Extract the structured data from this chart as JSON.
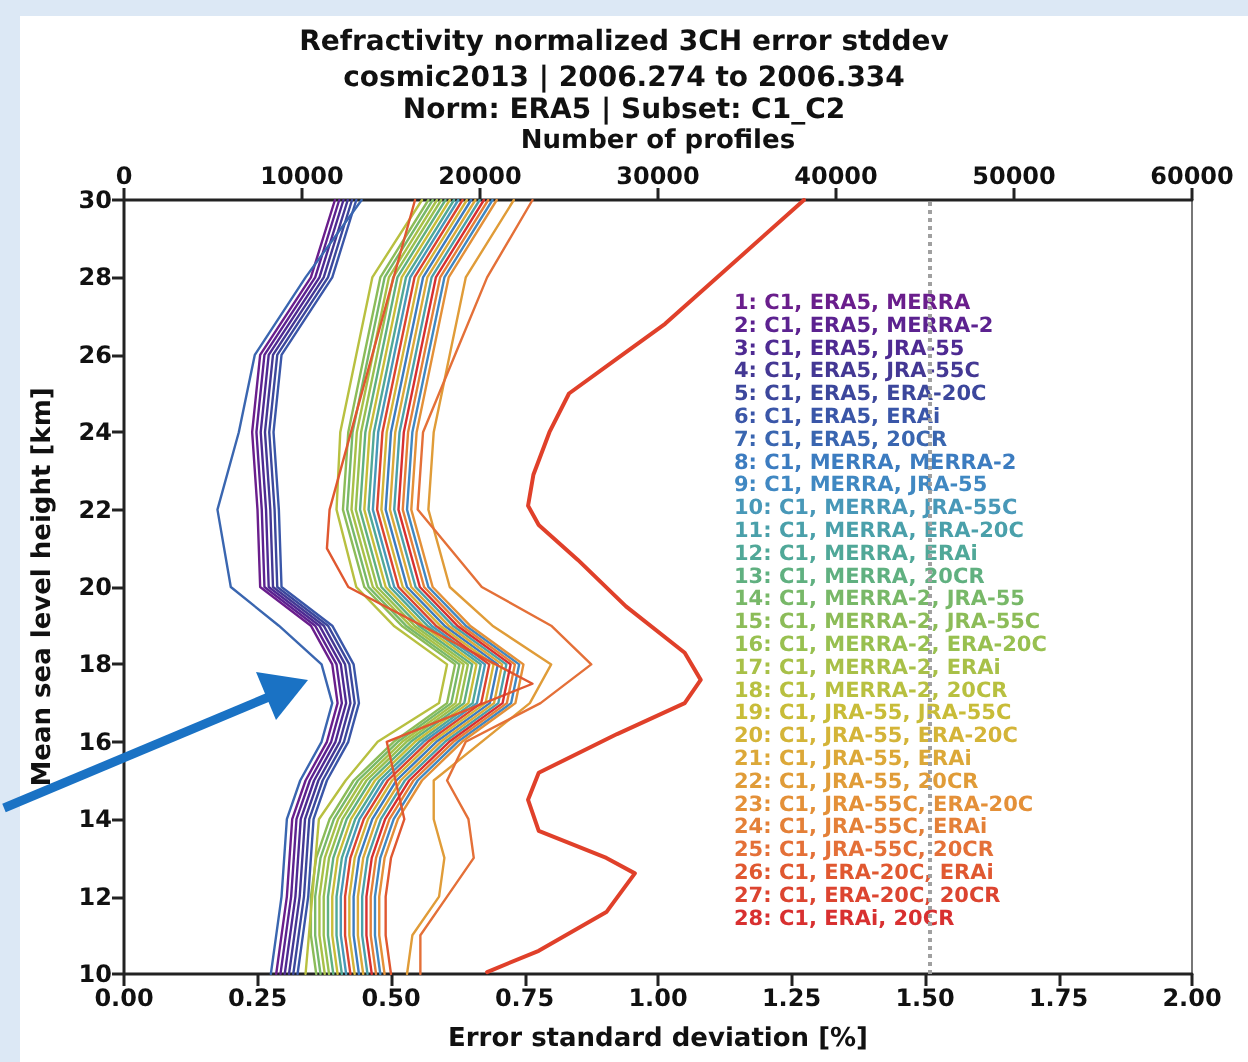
{
  "chart_data": {
    "type": "line",
    "title": "Refractivity normalized 3CH error stddev",
    "subtitle": "cosmic2013 | 2006.274 to 2006.334\nNorm: ERA5 | Subset: C1_C2",
    "xlabel": "Error standard deviation [%]",
    "ylabel": "Mean sea level height [km]",
    "x2label": "Number of profiles",
    "xlim": [
      0,
      2
    ],
    "xticks": [
      {
        "value": 0,
        "label": "0.00"
      },
      {
        "value": 0.25,
        "label": "0.25"
      },
      {
        "value": 0.5,
        "label": "0.50"
      },
      {
        "value": 0.75,
        "label": "0.75"
      },
      {
        "value": 1,
        "label": "1.00"
      },
      {
        "value": 1.25,
        "label": "1.25"
      },
      {
        "value": 1.5,
        "label": "1.50"
      },
      {
        "value": 1.75,
        "label": "1.75"
      },
      {
        "value": 2,
        "label": "2.00"
      }
    ],
    "x2lim": [
      0,
      60000
    ],
    "x2ticks": [
      0,
      10000,
      20000,
      30000,
      40000,
      50000,
      60000
    ],
    "ylim": [
      10,
      30
    ],
    "yticks": [
      10,
      12,
      14,
      16,
      18,
      20,
      22,
      24,
      26,
      28,
      30
    ],
    "grid": false,
    "legend": "right",
    "marker": "none",
    "line_style": "solid",
    "ref_lines": [
      {
        "axis": "x",
        "value": 1.51,
        "color": "#a0a0a0",
        "line_style": "dotted"
      }
    ],
    "series": [
      {
        "name": "1: C1, ERA5, MERRA",
        "color": "#6a1e8c",
        "x": [
          0.395,
          0.35,
          0.255,
          0.24,
          0.25,
          0.255,
          0.35,
          0.39,
          0.4,
          0.38,
          0.34,
          0.315,
          0.31,
          0.305,
          0.295,
          0.285
        ],
        "values": [
          30,
          28,
          26,
          24,
          22,
          20,
          19,
          18,
          17,
          16,
          15,
          14,
          13,
          12,
          11,
          10
        ]
      },
      {
        "name": "2: C1, ERA5, MERRA-2",
        "color": "#5c2290",
        "x": [
          0.403,
          0.358,
          0.263,
          0.248,
          0.258,
          0.263,
          0.358,
          0.398,
          0.408,
          0.388,
          0.348,
          0.323,
          0.318,
          0.313,
          0.303,
          0.293
        ],
        "values": [
          30,
          28,
          26,
          24,
          22,
          20,
          19,
          18,
          17,
          16,
          15,
          14,
          13,
          12,
          11,
          10
        ]
      },
      {
        "name": "3: C1, ERA5, JRA-55",
        "color": "#4e2a92",
        "x": [
          0.411,
          0.366,
          0.271,
          0.256,
          0.266,
          0.271,
          0.366,
          0.406,
          0.416,
          0.396,
          0.356,
          0.331,
          0.326,
          0.321,
          0.311,
          0.301
        ],
        "values": [
          30,
          28,
          26,
          24,
          22,
          20,
          19,
          18,
          17,
          16,
          15,
          14,
          13,
          12,
          11,
          10
        ]
      },
      {
        "name": "4: C1, ERA5, JRA-55C",
        "color": "#443894",
        "x": [
          0.419,
          0.374,
          0.279,
          0.264,
          0.274,
          0.279,
          0.374,
          0.414,
          0.424,
          0.404,
          0.364,
          0.339,
          0.334,
          0.329,
          0.319,
          0.309
        ],
        "values": [
          30,
          28,
          26,
          24,
          22,
          20,
          19,
          18,
          17,
          16,
          15,
          14,
          13,
          12,
          11,
          10
        ]
      },
      {
        "name": "5: C1, ERA5, ERA-20C",
        "color": "#3c479c",
        "x": [
          0.427,
          0.382,
          0.287,
          0.272,
          0.282,
          0.287,
          0.382,
          0.422,
          0.432,
          0.412,
          0.372,
          0.347,
          0.342,
          0.337,
          0.327,
          0.317
        ],
        "values": [
          30,
          28,
          26,
          24,
          22,
          20,
          19,
          18,
          17,
          16,
          15,
          14,
          13,
          12,
          11,
          10
        ]
      },
      {
        "name": "6: C1, ERA5, ERAi",
        "color": "#3a56a8",
        "x": [
          0.435,
          0.39,
          0.295,
          0.28,
          0.29,
          0.295,
          0.39,
          0.43,
          0.44,
          0.42,
          0.38,
          0.355,
          0.35,
          0.345,
          0.335,
          0.325
        ],
        "values": [
          30,
          28,
          26,
          24,
          22,
          20,
          19,
          18,
          17,
          16,
          15,
          14,
          13,
          12,
          11,
          10
        ]
      },
      {
        "name": "7: C1, ERA5, 20CR",
        "color": "#3a66b0",
        "x": [
          0.445,
          0.34,
          0.245,
          0.215,
          0.175,
          0.2,
          0.29,
          0.37,
          0.39,
          0.37,
          0.33,
          0.305,
          0.3,
          0.295,
          0.285,
          0.275
        ],
        "values": [
          30,
          28,
          26,
          24,
          22,
          20,
          19,
          18,
          17,
          16,
          15,
          14,
          13,
          12,
          11,
          10
        ]
      },
      {
        "name": "8: C1, MERRA, MERRA-2",
        "color": "#3c7cc0",
        "x": [
          0.65,
          0.56,
          0.53,
          0.5,
          0.49,
          0.53,
          0.6,
          0.7,
          0.685,
          0.585,
          0.51,
          0.465,
          0.44,
          0.43,
          0.43,
          0.44
        ],
        "values": [
          30,
          28,
          26,
          24,
          22,
          20,
          19,
          18,
          17,
          16,
          15,
          14,
          13,
          12,
          11,
          10
        ]
      },
      {
        "name": "9: C1, MERRA, JRA-55",
        "color": "#4088c2",
        "x": [
          0.69,
          0.6,
          0.57,
          0.54,
          0.53,
          0.57,
          0.64,
          0.74,
          0.725,
          0.625,
          0.55,
          0.505,
          0.48,
          0.47,
          0.47,
          0.48
        ],
        "values": [
          30,
          28,
          26,
          24,
          22,
          20,
          19,
          18,
          17,
          16,
          15,
          14,
          13,
          12,
          11,
          10
        ]
      },
      {
        "name": "10: C1, MERRA, JRA-55C",
        "color": "#4898b8",
        "x": [
          0.626,
          0.536,
          0.506,
          0.476,
          0.466,
          0.506,
          0.576,
          0.676,
          0.661,
          0.561,
          0.486,
          0.441,
          0.416,
          0.406,
          0.406,
          0.416
        ],
        "values": [
          30,
          28,
          26,
          24,
          22,
          20,
          19,
          18,
          17,
          16,
          15,
          14,
          13,
          12,
          11,
          10
        ]
      },
      {
        "name": "11: C1, MERRA, ERA-20C",
        "color": "#4aa0aa",
        "x": [
          0.666,
          0.576,
          0.546,
          0.516,
          0.506,
          0.546,
          0.616,
          0.716,
          0.701,
          0.601,
          0.526,
          0.481,
          0.456,
          0.446,
          0.446,
          0.456
        ],
        "values": [
          30,
          28,
          26,
          24,
          22,
          20,
          19,
          18,
          17,
          16,
          15,
          14,
          13,
          12,
          11,
          10
        ]
      },
      {
        "name": "12: C1, MERRA, ERAi",
        "color": "#50a898",
        "x": [
          0.618,
          0.528,
          0.498,
          0.468,
          0.458,
          0.498,
          0.568,
          0.668,
          0.653,
          0.553,
          0.478,
          0.433,
          0.408,
          0.398,
          0.398,
          0.408
        ],
        "values": [
          30,
          28,
          26,
          24,
          22,
          20,
          19,
          18,
          17,
          16,
          15,
          14,
          13,
          12,
          11,
          10
        ]
      },
      {
        "name": "13: C1, MERRA, 20CR",
        "color": "#60b080",
        "x": [
          0.602,
          0.512,
          0.482,
          0.452,
          0.442,
          0.482,
          0.552,
          0.652,
          0.637,
          0.537,
          0.462,
          0.417,
          0.392,
          0.382,
          0.382,
          0.392
        ],
        "values": [
          30,
          28,
          26,
          24,
          22,
          20,
          19,
          18,
          17,
          16,
          15,
          14,
          13,
          12,
          11,
          10
        ]
      },
      {
        "name": "14: C1, MERRA-2, JRA-55",
        "color": "#78b868",
        "x": [
          0.578,
          0.488,
          0.458,
          0.428,
          0.418,
          0.458,
          0.528,
          0.628,
          0.613,
          0.513,
          0.438,
          0.393,
          0.368,
          0.358,
          0.358,
          0.368
        ],
        "values": [
          30,
          28,
          26,
          24,
          22,
          20,
          19,
          18,
          17,
          16,
          15,
          14,
          13,
          12,
          11,
          10
        ]
      },
      {
        "name": "15: C1, MERRA-2, JRA-55C",
        "color": "#8cbc58",
        "x": [
          0.57,
          0.48,
          0.45,
          0.42,
          0.41,
          0.45,
          0.52,
          0.62,
          0.605,
          0.505,
          0.43,
          0.385,
          0.36,
          0.35,
          0.35,
          0.36
        ],
        "values": [
          30,
          28,
          26,
          24,
          22,
          20,
          19,
          18,
          17,
          16,
          15,
          14,
          13,
          12,
          11,
          10
        ]
      },
      {
        "name": "16: C1, MERRA-2, ERA-20C",
        "color": "#98c050",
        "x": [
          0.594,
          0.504,
          0.474,
          0.444,
          0.434,
          0.474,
          0.544,
          0.644,
          0.629,
          0.529,
          0.454,
          0.409,
          0.384,
          0.374,
          0.374,
          0.384
        ],
        "values": [
          30,
          28,
          26,
          24,
          22,
          20,
          19,
          18,
          17,
          16,
          15,
          14,
          13,
          12,
          11,
          10
        ]
      },
      {
        "name": "17: C1, MERRA-2, ERAi",
        "color": "#a8c048",
        "x": [
          0.586,
          0.496,
          0.466,
          0.436,
          0.426,
          0.466,
          0.536,
          0.636,
          0.621,
          0.521,
          0.446,
          0.401,
          0.376,
          0.366,
          0.366,
          0.376
        ],
        "values": [
          30,
          28,
          26,
          24,
          22,
          20,
          19,
          18,
          17,
          16,
          15,
          14,
          13,
          12,
          11,
          10
        ]
      },
      {
        "name": "18: C1, MERRA-2, 20CR",
        "color": "#b8c040",
        "x": [
          0.558,
          0.465,
          0.435,
          0.405,
          0.398,
          0.435,
          0.505,
          0.605,
          0.59,
          0.475,
          0.415,
          0.365,
          0.34
        ],
        "values": [
          30,
          28,
          26,
          24,
          22,
          20,
          19,
          18,
          17,
          16,
          15,
          14,
          10
        ]
      },
      {
        "name": "19: C1, JRA-55, JRA-55C",
        "color": "#c8bc38",
        "x": [
          0.61,
          0.52,
          0.49,
          0.46,
          0.45,
          0.49,
          0.56,
          0.66,
          0.645,
          0.545,
          0.47,
          0.425,
          0.4,
          0.39,
          0.39,
          0.4
        ],
        "values": [
          30,
          28,
          26,
          24,
          22,
          20,
          19,
          18,
          17,
          16,
          15,
          14,
          13,
          12,
          11,
          10
        ]
      },
      {
        "name": "20: C1, JRA-55, ERA-20C",
        "color": "#d4b438",
        "x": [
          0.642,
          0.552,
          0.522,
          0.492,
          0.482,
          0.522,
          0.592,
          0.692,
          0.677,
          0.577,
          0.502,
          0.457,
          0.432,
          0.422,
          0.422,
          0.432
        ],
        "values": [
          30,
          28,
          26,
          24,
          22,
          20,
          19,
          18,
          17,
          16,
          15,
          14,
          13,
          12,
          11,
          10
        ]
      },
      {
        "name": "21: C1, JRA-55, ERAi",
        "color": "#dca838",
        "x": [
          0.658,
          0.568,
          0.538,
          0.508,
          0.498,
          0.538,
          0.608,
          0.708,
          0.693,
          0.593,
          0.518,
          0.473,
          0.448,
          0.438,
          0.438,
          0.448
        ],
        "values": [
          30,
          28,
          26,
          24,
          22,
          20,
          19,
          18,
          17,
          16,
          15,
          14,
          13,
          12,
          11,
          10
        ]
      },
      {
        "name": "22: C1, JRA-55, 20CR",
        "color": "#e09c38",
        "x": [
          0.73,
          0.64,
          0.61,
          0.58,
          0.57,
          0.61,
          0.69,
          0.8,
          0.76,
          0.58,
          0.58,
          0.6,
          0.59,
          0.54,
          0.53
        ],
        "values": [
          30,
          28,
          26,
          24,
          22,
          20,
          19,
          18,
          17,
          15,
          14,
          13,
          12,
          11,
          10
        ]
      },
      {
        "name": "23: C1, JRA-55C, ERA-20C",
        "color": "#e49038",
        "x": [
          0.698,
          0.608,
          0.578,
          0.548,
          0.538,
          0.578,
          0.648,
          0.748,
          0.733,
          0.633,
          0.558,
          0.513,
          0.488,
          0.478,
          0.478,
          0.488
        ],
        "values": [
          30,
          28,
          26,
          24,
          22,
          20,
          19,
          18,
          17,
          16,
          15,
          14,
          13,
          12,
          11,
          10
        ]
      },
      {
        "name": "24: C1, JRA-55C, ERAi",
        "color": "#e48038",
        "x": [
          0.682,
          0.592,
          0.562,
          0.532,
          0.522,
          0.562,
          0.632,
          0.732,
          0.717,
          0.617,
          0.542,
          0.497,
          0.472,
          0.462,
          0.462,
          0.472
        ],
        "values": [
          30,
          28,
          26,
          24,
          22,
          20,
          19,
          18,
          17,
          16,
          15,
          14,
          13,
          12,
          11,
          10
        ]
      },
      {
        "name": "25: C1, JRA-55C, 20CR",
        "color": "#e47038",
        "x": [
          0.765,
          0.68,
          0.62,
          0.56,
          0.55,
          0.67,
          0.8,
          0.875,
          0.78,
          0.64,
          0.605,
          0.645,
          0.655,
          0.605,
          0.555,
          0.555
        ],
        "values": [
          30,
          28,
          26,
          24,
          22,
          20,
          19,
          18,
          17,
          16,
          15,
          14,
          13,
          12,
          11,
          10
        ]
      },
      {
        "name": "26: C1, ERA-20C, ERAi",
        "color": "#e05830",
        "x": [
          0.545,
          0.385,
          0.38,
          0.42,
          0.765,
          0.492,
          0.525,
          0.5,
          0.49,
          0.49,
          0.5
        ],
        "values": [
          30,
          22,
          21,
          20,
          17.5,
          16,
          14,
          13,
          12,
          11,
          10
        ]
      },
      {
        "name": "27: C1, ERA-20C, 20CR",
        "color": "#dc4430",
        "x": [
          0.634,
          0.544,
          0.514,
          0.484,
          0.474,
          0.514,
          0.584,
          0.684,
          0.669,
          0.569,
          0.494,
          0.449,
          0.424,
          0.414,
          0.414,
          0.424
        ],
        "values": [
          30,
          28,
          26,
          24,
          22,
          20,
          19,
          18,
          17,
          16,
          15,
          14,
          13,
          12,
          11,
          10
        ]
      },
      {
        "name": "28: C1, ERAi, 20CR",
        "color": "#d83030",
        "x": [
          0.674,
          0.584,
          0.554,
          0.524,
          0.514,
          0.554,
          0.624,
          0.724,
          0.709,
          0.609,
          0.534,
          0.489,
          0.464,
          0.454,
          0.454,
          0.464
        ],
        "values": [
          30,
          28,
          26,
          24,
          22,
          20,
          19,
          18,
          17,
          16,
          15,
          14,
          13,
          12,
          11,
          10
        ]
      },
      {
        "color": "#e0402a",
        "axis": "x2",
        "x": [
          38200,
          30400,
          27700,
          25000,
          23900,
          23000,
          22700,
          23300,
          25500,
          28200,
          31500,
          32400,
          31500,
          27700,
          23300,
          22700,
          23300,
          27100,
          28700,
          27100,
          23300,
          20400
        ],
        "values": [
          30,
          26.8,
          25.9,
          25,
          24,
          22.9,
          22.1,
          21.6,
          20.7,
          19.5,
          18.3,
          17.6,
          17,
          16.2,
          15.2,
          14.5,
          13.7,
          13,
          12.6,
          11.6,
          10.6,
          10.05
        ]
      }
    ]
  }
}
